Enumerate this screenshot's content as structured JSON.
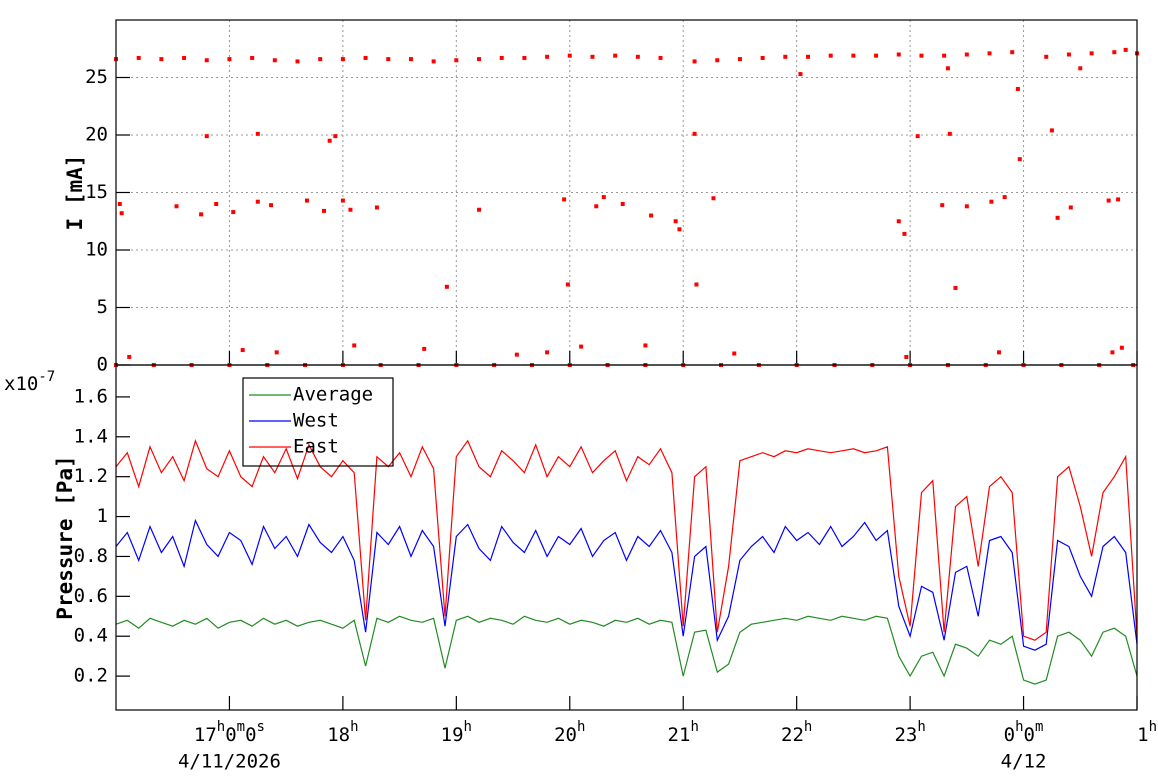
{
  "chart_data": [
    {
      "type": "scatter",
      "y_label": "I [mA]",
      "xlim": [
        "2026-04-11 16:00",
        "2026-04-12 01:00"
      ],
      "xticks": [
        "2026-04-11 17:00",
        "2026-04-11 18:00",
        "2026-04-11 19:00",
        "2026-04-11 20:00",
        "2026-04-11 21:00",
        "2026-04-11 22:00",
        "2026-04-11 23:00",
        "2026-04-12 00:00",
        "2026-04-12 01:00"
      ],
      "ylim": [
        0,
        30
      ],
      "yticks": [
        0,
        5,
        10,
        15,
        20,
        25
      ],
      "grid": true,
      "x": [
        "2026-04-11 16:00",
        "2026-04-11 16:12",
        "2026-04-11 16:24",
        "2026-04-11 16:36",
        "2026-04-11 16:48",
        "2026-04-11 17:00",
        "2026-04-11 17:12",
        "2026-04-11 17:24",
        "2026-04-11 17:36",
        "2026-04-11 17:48",
        "2026-04-11 18:00",
        "2026-04-11 18:12",
        "2026-04-11 18:24",
        "2026-04-11 18:36",
        "2026-04-11 18:48",
        "2026-04-11 19:00",
        "2026-04-11 19:12",
        "2026-04-11 19:24",
        "2026-04-11 19:36",
        "2026-04-11 19:48",
        "2026-04-11 20:00",
        "2026-04-11 20:12",
        "2026-04-11 20:24",
        "2026-04-11 20:36",
        "2026-04-11 20:48",
        "2026-04-11 21:06",
        "2026-04-11 21:18",
        "2026-04-11 21:30",
        "2026-04-11 21:42",
        "2026-04-11 21:54",
        "2026-04-11 22:06",
        "2026-04-11 22:18",
        "2026-04-11 22:30",
        "2026-04-11 22:42",
        "2026-04-11 22:54",
        "2026-04-11 23:06",
        "2026-04-11 23:18",
        "2026-04-11 23:30",
        "2026-04-11 23:42",
        "2026-04-11 23:54",
        "2026-04-11 23:57",
        "2026-04-12 00:12",
        "2026-04-12 00:24",
        "2026-04-12 00:36",
        "2026-04-12 00:48",
        "2026-04-12 00:54",
        "2026-04-12 01:00",
        "2026-04-11 16:02",
        "2026-04-11 16:03",
        "2026-04-11 16:32",
        "2026-04-11 16:45",
        "2026-04-11 16:48",
        "2026-04-11 16:53",
        "2026-04-11 17:02",
        "2026-04-11 17:15",
        "2026-04-11 17:15",
        "2026-04-11 17:22",
        "2026-04-11 17:41",
        "2026-04-11 17:50",
        "2026-04-11 17:53",
        "2026-04-11 17:56",
        "2026-04-11 18:00",
        "2026-04-11 18:04",
        "2026-04-11 18:18",
        "2026-04-11 18:55",
        "2026-04-11 19:12",
        "2026-04-11 19:57",
        "2026-04-11 19:59",
        "2026-04-11 20:14",
        "2026-04-11 20:18",
        "2026-04-11 20:28",
        "2026-04-11 20:43",
        "2026-04-11 20:56",
        "2026-04-11 20:58",
        "2026-04-11 21:06",
        "2026-04-11 21:07",
        "2026-04-11 21:16",
        "2026-04-11 22:02",
        "2026-04-11 22:54",
        "2026-04-11 22:57",
        "2026-04-11 23:04",
        "2026-04-11 23:17",
        "2026-04-11 23:21",
        "2026-04-11 23:24",
        "2026-04-11 23:30",
        "2026-04-11 23:43",
        "2026-04-11 23:50",
        "2026-04-11 23:58",
        "2026-04-12 00:15",
        "2026-04-12 00:18",
        "2026-04-12 00:25",
        "2026-04-12 00:45",
        "2026-04-12 00:50",
        "2026-04-12 00:30",
        "2026-04-11 23:20",
        "2026-04-11 16:07",
        "2026-04-11 17:07",
        "2026-04-11 17:25",
        "2026-04-11 18:06",
        "2026-04-11 18:43",
        "2026-04-11 19:32",
        "2026-04-11 19:48",
        "2026-04-11 20:06",
        "2026-04-11 20:40",
        "2026-04-11 21:27",
        "2026-04-11 22:58",
        "2026-04-11 23:47",
        "2026-04-12 00:47",
        "2026-04-12 00:52",
        "2026-04-11 16:00",
        "2026-04-11 16:20",
        "2026-04-11 16:40",
        "2026-04-11 17:00",
        "2026-04-11 17:20",
        "2026-04-11 17:40",
        "2026-04-11 18:00",
        "2026-04-11 18:20",
        "2026-04-11 18:40",
        "2026-04-11 19:00",
        "2026-04-11 19:20",
        "2026-04-11 19:40",
        "2026-04-11 20:00",
        "2026-04-11 20:20",
        "2026-04-11 20:40",
        "2026-04-11 21:00",
        "2026-04-11 21:20",
        "2026-04-11 21:40",
        "2026-04-11 22:00",
        "2026-04-11 22:20",
        "2026-04-11 22:40",
        "2026-04-11 23:00",
        "2026-04-11 23:20",
        "2026-04-11 23:40",
        "2026-04-12 00:00",
        "2026-04-12 00:20",
        "2026-04-12 00:40",
        "2026-04-12 00:58"
      ],
      "series": [
        {
          "color": "#ff0000",
          "values": [
            26.6,
            26.7,
            26.6,
            26.7,
            26.5,
            26.6,
            26.7,
            26.5,
            26.4,
            26.6,
            26.6,
            26.7,
            26.6,
            26.6,
            26.4,
            26.5,
            26.6,
            26.7,
            26.7,
            26.8,
            26.9,
            26.8,
            26.9,
            26.8,
            26.7,
            26.4,
            26.5,
            26.6,
            26.7,
            26.8,
            26.8,
            26.9,
            26.9,
            26.9,
            27.0,
            26.9,
            26.9,
            27.0,
            27.1,
            27.2,
            24.0,
            26.8,
            27.0,
            27.1,
            27.2,
            27.4,
            27.1,
            14.0,
            13.2,
            13.8,
            13.1,
            19.9,
            14.0,
            13.3,
            20.1,
            14.2,
            13.9,
            14.3,
            13.4,
            19.5,
            19.9,
            14.3,
            13.5,
            13.7,
            6.8,
            13.5,
            14.4,
            7.0,
            13.8,
            14.6,
            14.0,
            13.0,
            12.5,
            11.8,
            20.1,
            7.0,
            14.5,
            25.3,
            12.5,
            11.4,
            19.9,
            13.9,
            20.1,
            6.7,
            13.8,
            14.2,
            14.6,
            17.9,
            20.4,
            12.8,
            13.7,
            14.3,
            14.4,
            25.8,
            25.8,
            0.7,
            1.3,
            1.1,
            1.7,
            1.4,
            0.9,
            1.1,
            1.6,
            1.7,
            1.0,
            0.7,
            1.1,
            1.1,
            1.5,
            0,
            0,
            0,
            0,
            0,
            0,
            0,
            0,
            0,
            0,
            0,
            0,
            0,
            0,
            0,
            0,
            0,
            0,
            0,
            0,
            0,
            0,
            0,
            0,
            0,
            0,
            0,
            0
          ]
        }
      ]
    },
    {
      "type": "line",
      "y_label": "Pressure [Pa]",
      "y_multiplier": {
        "base": "x10",
        "exponent": "-7"
      },
      "xlim": [
        "2026-04-11 16:00",
        "2026-04-12 01:00"
      ],
      "xticks": [
        {
          "value": "2026-04-11 17:00",
          "label": "17h0m0s"
        },
        {
          "value": "2026-04-11 18:00",
          "label": "18h"
        },
        {
          "value": "2026-04-11 19:00",
          "label": "19h"
        },
        {
          "value": "2026-04-11 20:00",
          "label": "20h"
        },
        {
          "value": "2026-04-11 21:00",
          "label": "21h"
        },
        {
          "value": "2026-04-11 22:00",
          "label": "22h"
        },
        {
          "value": "2026-04-11 23:00",
          "label": "23h"
        },
        {
          "value": "2026-04-12 00:00",
          "label": "0h0m"
        },
        {
          "value": "2026-04-12 01:00",
          "label": "1h"
        }
      ],
      "x_date_labels": [
        {
          "value": "2026-04-11 17:00",
          "label": "4/11/2026"
        },
        {
          "value": "2026-04-12 00:00",
          "label": "4/12"
        }
      ],
      "ylim": [
        0.03,
        1.76
      ],
      "yticks": [
        0.2,
        0.4,
        0.6,
        0.8,
        1,
        1.2,
        1.4,
        1.6
      ],
      "grid": false,
      "x": [
        "2026-04-11 16:00",
        "2026-04-11 16:06",
        "2026-04-11 16:12",
        "2026-04-11 16:18",
        "2026-04-11 16:24",
        "2026-04-11 16:30",
        "2026-04-11 16:36",
        "2026-04-11 16:42",
        "2026-04-11 16:48",
        "2026-04-11 16:54",
        "2026-04-11 17:00",
        "2026-04-11 17:06",
        "2026-04-11 17:12",
        "2026-04-11 17:18",
        "2026-04-11 17:24",
        "2026-04-11 17:30",
        "2026-04-11 17:36",
        "2026-04-11 17:42",
        "2026-04-11 17:48",
        "2026-04-11 17:54",
        "2026-04-11 18:00",
        "2026-04-11 18:06",
        "2026-04-11 18:12",
        "2026-04-11 18:18",
        "2026-04-11 18:24",
        "2026-04-11 18:30",
        "2026-04-11 18:36",
        "2026-04-11 18:42",
        "2026-04-11 18:48",
        "2026-04-11 18:54",
        "2026-04-11 19:00",
        "2026-04-11 19:06",
        "2026-04-11 19:12",
        "2026-04-11 19:18",
        "2026-04-11 19:24",
        "2026-04-11 19:30",
        "2026-04-11 19:36",
        "2026-04-11 19:42",
        "2026-04-11 19:48",
        "2026-04-11 19:54",
        "2026-04-11 20:00",
        "2026-04-11 20:06",
        "2026-04-11 20:12",
        "2026-04-11 20:18",
        "2026-04-11 20:24",
        "2026-04-11 20:30",
        "2026-04-11 20:36",
        "2026-04-11 20:42",
        "2026-04-11 20:48",
        "2026-04-11 20:54",
        "2026-04-11 21:00",
        "2026-04-11 21:06",
        "2026-04-11 21:12",
        "2026-04-11 21:18",
        "2026-04-11 21:24",
        "2026-04-11 21:30",
        "2026-04-11 21:36",
        "2026-04-11 21:42",
        "2026-04-11 21:48",
        "2026-04-11 21:54",
        "2026-04-11 22:00",
        "2026-04-11 22:06",
        "2026-04-11 22:12",
        "2026-04-11 22:18",
        "2026-04-11 22:24",
        "2026-04-11 22:30",
        "2026-04-11 22:36",
        "2026-04-11 22:42",
        "2026-04-11 22:48",
        "2026-04-11 22:54",
        "2026-04-11 23:00",
        "2026-04-11 23:06",
        "2026-04-11 23:12",
        "2026-04-11 23:18",
        "2026-04-11 23:24",
        "2026-04-11 23:30",
        "2026-04-11 23:36",
        "2026-04-11 23:42",
        "2026-04-11 23:48",
        "2026-04-11 23:54",
        "2026-04-12 00:00",
        "2026-04-12 00:06",
        "2026-04-12 00:12",
        "2026-04-12 00:18",
        "2026-04-12 00:24",
        "2026-04-12 00:30",
        "2026-04-12 00:36",
        "2026-04-12 00:42",
        "2026-04-12 00:48",
        "2026-04-12 00:54",
        "2026-04-12 01:00"
      ],
      "legend": "top-left",
      "series": [
        {
          "name": "Average",
          "color": "#228b22",
          "values": [
            0.46,
            0.48,
            0.44,
            0.49,
            0.47,
            0.45,
            0.48,
            0.46,
            0.49,
            0.44,
            0.47,
            0.48,
            0.45,
            0.49,
            0.46,
            0.48,
            0.45,
            0.47,
            0.48,
            0.46,
            0.44,
            0.48,
            0.25,
            0.49,
            0.47,
            0.5,
            0.48,
            0.47,
            0.49,
            0.24,
            0.48,
            0.5,
            0.47,
            0.49,
            0.48,
            0.46,
            0.5,
            0.48,
            0.47,
            0.49,
            0.46,
            0.48,
            0.47,
            0.45,
            0.48,
            0.47,
            0.49,
            0.46,
            0.48,
            0.47,
            0.2,
            0.42,
            0.43,
            0.22,
            0.26,
            0.42,
            0.46,
            0.47,
            0.48,
            0.49,
            0.48,
            0.5,
            0.49,
            0.48,
            0.5,
            0.49,
            0.48,
            0.5,
            0.49,
            0.3,
            0.2,
            0.3,
            0.32,
            0.2,
            0.36,
            0.34,
            0.3,
            0.38,
            0.36,
            0.4,
            0.18,
            0.16,
            0.18,
            0.4,
            0.42,
            0.38,
            0.3,
            0.42,
            0.44,
            0.4,
            0.2
          ]
        },
        {
          "name": "West",
          "color": "#0000ff",
          "values": [
            0.85,
            0.92,
            0.78,
            0.95,
            0.82,
            0.9,
            0.75,
            0.98,
            0.86,
            0.8,
            0.92,
            0.88,
            0.76,
            0.95,
            0.84,
            0.9,
            0.8,
            0.96,
            0.87,
            0.82,
            0.9,
            0.78,
            0.42,
            0.92,
            0.86,
            0.95,
            0.8,
            0.93,
            0.85,
            0.45,
            0.9,
            0.96,
            0.84,
            0.78,
            0.95,
            0.87,
            0.82,
            0.93,
            0.8,
            0.9,
            0.86,
            0.94,
            0.8,
            0.88,
            0.92,
            0.78,
            0.9,
            0.85,
            0.93,
            0.82,
            0.4,
            0.8,
            0.85,
            0.38,
            0.5,
            0.78,
            0.85,
            0.9,
            0.82,
            0.95,
            0.88,
            0.92,
            0.86,
            0.95,
            0.85,
            0.9,
            0.97,
            0.88,
            0.93,
            0.55,
            0.4,
            0.65,
            0.62,
            0.38,
            0.72,
            0.75,
            0.5,
            0.88,
            0.9,
            0.82,
            0.35,
            0.33,
            0.36,
            0.88,
            0.85,
            0.7,
            0.6,
            0.85,
            0.9,
            0.82,
            0.36
          ]
        },
        {
          "name": "East",
          "color": "#ff0000",
          "values": [
            1.25,
            1.32,
            1.15,
            1.35,
            1.22,
            1.3,
            1.18,
            1.38,
            1.24,
            1.2,
            1.33,
            1.2,
            1.15,
            1.3,
            1.22,
            1.34,
            1.19,
            1.36,
            1.25,
            1.2,
            1.28,
            1.22,
            0.48,
            1.3,
            1.25,
            1.32,
            1.2,
            1.35,
            1.24,
            0.5,
            1.3,
            1.38,
            1.25,
            1.2,
            1.33,
            1.28,
            1.22,
            1.36,
            1.2,
            1.3,
            1.25,
            1.35,
            1.22,
            1.28,
            1.33,
            1.18,
            1.3,
            1.26,
            1.34,
            1.22,
            0.45,
            1.2,
            1.25,
            0.42,
            0.75,
            1.28,
            1.3,
            1.32,
            1.3,
            1.33,
            1.32,
            1.34,
            1.33,
            1.32,
            1.33,
            1.34,
            1.32,
            1.33,
            1.35,
            0.7,
            0.45,
            1.12,
            1.18,
            0.42,
            1.05,
            1.1,
            0.75,
            1.15,
            1.2,
            1.12,
            0.4,
            0.38,
            0.42,
            1.2,
            1.25,
            1.05,
            0.8,
            1.12,
            1.2,
            1.3,
            0.4
          ]
        }
      ]
    }
  ]
}
